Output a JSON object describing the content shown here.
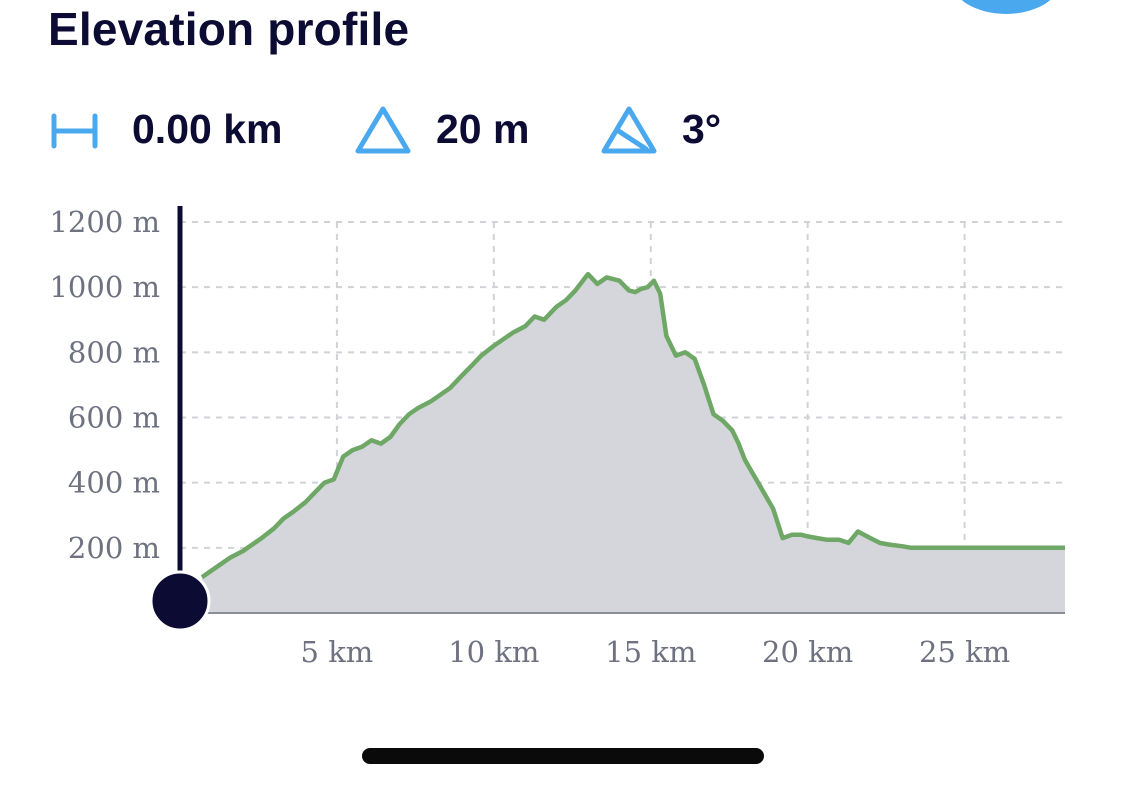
{
  "title": "Elevation profile",
  "stats": {
    "distance": {
      "icon": "distance-icon",
      "value": "0.00 km"
    },
    "elevation": {
      "icon": "elevation-triangle-icon",
      "value": "20 m"
    },
    "slope": {
      "icon": "slope-triangle-icon",
      "value": "3°"
    }
  },
  "colors": {
    "accent": "#4aa8ee",
    "text": "#0c0b33",
    "line": "#6fa866",
    "area": "#d4d6db",
    "cursor": "#0c0b33",
    "grid": "#d0d2d8",
    "axis_text": "#6e7280"
  },
  "chart_data": {
    "type": "area",
    "title": "",
    "xlabel": "",
    "ylabel": "",
    "xlim": [
      0,
      28.2
    ],
    "ylim": [
      0,
      1200
    ],
    "x_ticks": [
      5,
      10,
      15,
      20,
      25
    ],
    "x_tick_labels": [
      "5 km",
      "10 km",
      "15 km",
      "20 km",
      "25 km"
    ],
    "y_ticks": [
      200,
      400,
      600,
      800,
      1000,
      1200
    ],
    "y_tick_labels": [
      "200 m",
      "400 m",
      "600 m",
      "800 m",
      "1000 m",
      "1200 m"
    ],
    "grid": true,
    "cursor_x": 0,
    "series": [
      {
        "x": [
          0.7,
          1.0,
          1.3,
          1.6,
          2.0,
          2.3,
          2.6,
          3.0,
          3.3,
          3.6,
          4.0,
          4.3,
          4.6,
          4.9,
          5.2,
          5.5,
          5.8,
          6.1,
          6.4,
          6.7,
          7.0,
          7.3,
          7.6,
          8.0,
          8.3,
          8.6,
          9.0,
          9.3,
          9.6,
          10.0,
          10.3,
          10.6,
          11.0,
          11.3,
          11.6,
          12.0,
          12.3,
          12.6,
          13.0,
          13.3,
          13.6,
          14.0,
          14.3,
          14.5,
          14.7,
          14.9,
          15.1,
          15.3,
          15.5,
          15.8,
          16.1,
          16.4,
          16.7,
          17.0,
          17.3,
          17.6,
          17.8,
          18.0,
          18.3,
          18.6,
          18.9,
          19.2,
          19.5,
          19.8,
          20.0,
          20.3,
          20.6,
          21.0,
          21.3,
          21.6,
          22.0,
          22.3,
          22.6,
          23.0,
          23.3,
          23.6,
          24.0,
          24.3,
          24.6,
          25.0,
          25.3,
          25.6,
          26.0,
          26.3,
          26.6,
          27.0,
          27.3,
          27.6,
          28.0,
          28.2
        ],
        "y": [
          110,
          130,
          150,
          170,
          190,
          210,
          230,
          260,
          290,
          310,
          340,
          370,
          400,
          410,
          480,
          500,
          510,
          530,
          520,
          540,
          580,
          610,
          630,
          650,
          670,
          690,
          730,
          760,
          790,
          820,
          840,
          860,
          880,
          910,
          900,
          940,
          960,
          990,
          1040,
          1010,
          1030,
          1020,
          990,
          985,
          995,
          1000,
          1020,
          980,
          850,
          790,
          800,
          780,
          700,
          610,
          590,
          560,
          520,
          470,
          420,
          370,
          320,
          230,
          240,
          240,
          235,
          230,
          225,
          225,
          215,
          250,
          230,
          215,
          210,
          205,
          200,
          200,
          200,
          200,
          200,
          200,
          200,
          200,
          200,
          200,
          200,
          200,
          200,
          200,
          200,
          200
        ]
      }
    ]
  }
}
